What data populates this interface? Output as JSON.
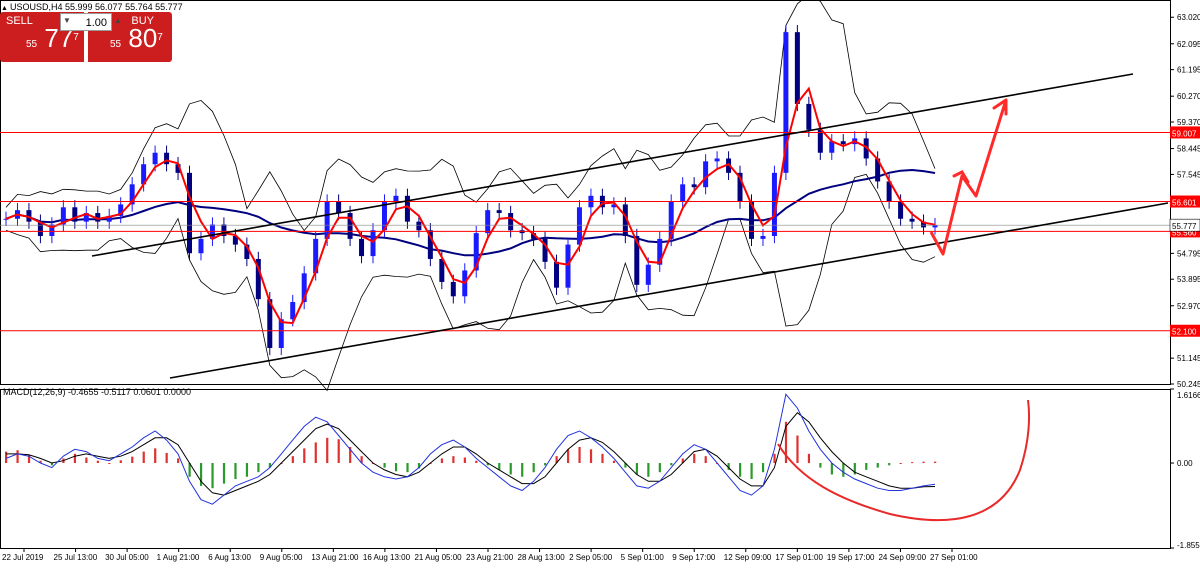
{
  "header": {
    "symbol_line": "USOUSD,H4  55.999 56.077 55.764 55.777"
  },
  "trade_panel": {
    "sell_label": "SELL",
    "buy_label": "BUY",
    "lot_value": "1.00",
    "sell_price_prefix": "55",
    "sell_price_main": "77",
    "sell_price_sup": "7",
    "buy_price_prefix": "55",
    "buy_price_main": "80",
    "buy_price_sup": "7"
  },
  "chart_data": [
    {
      "type": "candlestick",
      "title": "USOUSD,H4  55.999 56.077 55.764 55.777",
      "timeframe": "H4",
      "ylim": [
        50.245,
        63.62
      ],
      "y_ticks": [
        "63.020",
        "62.095",
        "61.195",
        "60.270",
        "59.370",
        "58.445",
        "57.545",
        "56.601",
        "55.777",
        "55.560",
        "54.795",
        "53.895",
        "52.970",
        "52.100",
        "51.145",
        "50.245"
      ],
      "x_ticks": [
        "22 Jul 2019",
        "25 Jul 13:00",
        "30 Jul 05:00",
        "1 Aug 21:00",
        "6 Aug 13:00",
        "9 Aug 05:00",
        "13 Aug 21:00",
        "16 Aug 13:00",
        "21 Aug 05:00",
        "23 Aug 21:00",
        "28 Aug 13:00",
        "2 Sep 05:00",
        "5 Sep 01:00",
        "9 Sep 17:00",
        "12 Sep 09:00",
        "17 Sep 01:00",
        "19 Sep 17:00",
        "24 Sep 09:00",
        "27 Sep 01:00"
      ],
      "horizontal_levels": [
        {
          "value": 59.007,
          "label": "59.007",
          "color": "#ff0000"
        },
        {
          "value": 56.601,
          "label": "56.601",
          "color": "#ff0000"
        },
        {
          "value": 55.56,
          "label": "55.560",
          "color": "#ff0000"
        },
        {
          "value": 52.1,
          "label": "52.100",
          "color": "#ff0000"
        }
      ],
      "current_price": {
        "value": 55.777,
        "label": "55.777"
      },
      "close_series": [
        56.0,
        56.3,
        55.9,
        55.4,
        55.8,
        56.4,
        55.9,
        56.2,
        55.9,
        56.1,
        56.5,
        57.2,
        57.9,
        58.3,
        57.9,
        57.6,
        54.8,
        55.3,
        55.8,
        55.4,
        55.1,
        54.6,
        53.2,
        51.5,
        52.5,
        53.1,
        54.1,
        55.3,
        56.6,
        56.2,
        55.3,
        54.7,
        55.6,
        56.6,
        56.8,
        55.9,
        55.6,
        54.6,
        53.8,
        53.3,
        54.2,
        55.5,
        56.3,
        56.2,
        55.6,
        55.5,
        55.3,
        54.5,
        53.6,
        55.1,
        56.4,
        56.8,
        56.4,
        56.5,
        55.4,
        53.7,
        54.4,
        55.3,
        56.6,
        57.2,
        57.1,
        58.0,
        58.1,
        57.6,
        56.6,
        55.3,
        55.4,
        57.6,
        62.5,
        60.0,
        59.1,
        58.3,
        58.7,
        58.6,
        58.8,
        58.1,
        57.3,
        56.6,
        56.0,
        55.9,
        55.7,
        55.777
      ],
      "moving_averages": [
        "red fast MA",
        "navy slow MA"
      ],
      "bollinger_bands": true,
      "trendlines": [
        {
          "name": "channel upper",
          "color": "#000000"
        },
        {
          "name": "channel lower",
          "color": "#000000"
        },
        {
          "name": "second lower line",
          "color": "#000000"
        }
      ],
      "annotation": "red zig-zag arrow projecting up toward ~60.3"
    },
    {
      "type": "bar",
      "title": "MACD(12,26,9) -0.4655 -0.5117 0.0601 0.0000",
      "params": "12,26,9",
      "readout": [
        "-0.4655",
        "-0.5117",
        "0.0601",
        "0.0000"
      ],
      "ylim": [
        -1.8559,
        1.6166
      ],
      "y_ticks": [
        "1.6166",
        "0.00",
        "-1.8559"
      ],
      "histogram": [
        0.25,
        0.28,
        0.18,
        0.05,
        -0.05,
        0.1,
        0.2,
        0.12,
        0.05,
        0.0,
        0.06,
        0.14,
        0.25,
        0.32,
        0.22,
        0.1,
        -0.3,
        -0.5,
        -0.55,
        -0.45,
        -0.35,
        -0.3,
        -0.2,
        -0.1,
        0.0,
        0.15,
        0.32,
        0.45,
        0.55,
        0.52,
        0.35,
        0.15,
        0.0,
        -0.1,
        -0.18,
        -0.2,
        -0.12,
        0.0,
        0.1,
        0.15,
        0.12,
        0.05,
        -0.05,
        -0.15,
        -0.25,
        -0.3,
        -0.2,
        -0.05,
        0.15,
        0.3,
        0.35,
        0.3,
        0.2,
        0.05,
        -0.1,
        -0.25,
        -0.3,
        -0.2,
        -0.05,
        0.1,
        0.2,
        0.15,
        0.0,
        -0.15,
        -0.3,
        -0.35,
        -0.2,
        0.2,
        0.9,
        0.6,
        0.2,
        -0.1,
        -0.25,
        -0.3,
        -0.25,
        -0.15,
        -0.1,
        -0.05,
        0.0,
        0.02,
        0.03,
        0.03
      ],
      "macd_line": [
        0.1,
        0.2,
        0.15,
        0.0,
        -0.1,
        0.15,
        0.3,
        0.25,
        0.1,
        0.05,
        0.2,
        0.35,
        0.55,
        0.7,
        0.5,
        0.2,
        -0.4,
        -0.8,
        -0.9,
        -0.7,
        -0.5,
        -0.4,
        -0.3,
        -0.1,
        0.2,
        0.5,
        0.8,
        1.0,
        0.9,
        0.6,
        0.3,
        0.0,
        -0.2,
        -0.3,
        -0.35,
        -0.3,
        -0.1,
        0.2,
        0.4,
        0.5,
        0.35,
        0.1,
        -0.1,
        -0.3,
        -0.5,
        -0.6,
        -0.4,
        -0.1,
        0.3,
        0.6,
        0.7,
        0.55,
        0.35,
        0.1,
        -0.2,
        -0.5,
        -0.55,
        -0.4,
        -0.1,
        0.2,
        0.4,
        0.3,
        0.0,
        -0.3,
        -0.6,
        -0.7,
        -0.5,
        0.3,
        1.5,
        1.2,
        0.7,
        0.3,
        0.0,
        -0.2,
        -0.35,
        -0.45,
        -0.55,
        -0.6,
        -0.6,
        -0.55,
        -0.5,
        -0.4655
      ],
      "signal_line": [
        0.2,
        0.2,
        0.18,
        0.1,
        0.0,
        0.05,
        0.15,
        0.2,
        0.15,
        0.1,
        0.15,
        0.25,
        0.4,
        0.55,
        0.55,
        0.4,
        0.0,
        -0.4,
        -0.65,
        -0.7,
        -0.6,
        -0.5,
        -0.4,
        -0.25,
        0.0,
        0.25,
        0.5,
        0.75,
        0.85,
        0.75,
        0.5,
        0.25,
        0.0,
        -0.15,
        -0.25,
        -0.3,
        -0.2,
        0.0,
        0.2,
        0.35,
        0.35,
        0.2,
        0.0,
        -0.15,
        -0.3,
        -0.45,
        -0.45,
        -0.3,
        0.0,
        0.3,
        0.5,
        0.55,
        0.45,
        0.25,
        0.0,
        -0.25,
        -0.4,
        -0.4,
        -0.25,
        0.0,
        0.25,
        0.3,
        0.15,
        -0.1,
        -0.35,
        -0.5,
        -0.5,
        -0.1,
        0.8,
        1.1,
        0.9,
        0.55,
        0.25,
        0.0,
        -0.2,
        -0.3,
        -0.4,
        -0.5,
        -0.55,
        -0.55,
        -0.52,
        -0.5117
      ],
      "annotation": "red hand-drawn U-shaped curve"
    }
  ],
  "colors": {
    "bull": "#1a1aff",
    "bear": "#000080",
    "ma_fast": "#ff0000",
    "ma_slow": "#000080",
    "level": "#ff0000",
    "band": "#000000",
    "hist_pos": "#e03030",
    "hist_neg": "#2a9a2a",
    "macd_line": "#2233dd",
    "signal_line": "#000000"
  }
}
